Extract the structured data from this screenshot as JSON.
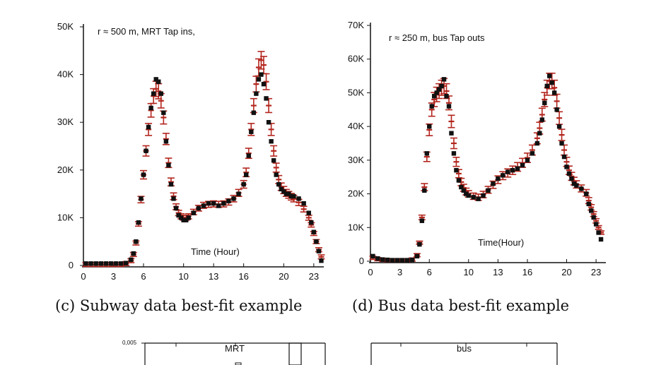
{
  "chart_data": [
    {
      "id": "c",
      "type": "scatter",
      "caption": "(c) Subway data best-fit example",
      "annotation": "r ≈ 500 m, MRT Tap ins,",
      "xlabel": "Time (Hour)",
      "ylabel": "",
      "xlim": [
        0,
        24
      ],
      "ylim": [
        0,
        50000
      ],
      "x_ticks": [
        0,
        3,
        6,
        10,
        13,
        16,
        20,
        23
      ],
      "y_ticks": [
        {
          "value": 0,
          "label": "0"
        },
        {
          "value": 10000,
          "label": "10K"
        },
        {
          "value": 20000,
          "label": "20K"
        },
        {
          "value": 30000,
          "label": "30K"
        },
        {
          "value": 40000,
          "label": "40K"
        },
        {
          "value": 50000,
          "label": "50K"
        }
      ],
      "colors": {
        "observed": "#111111",
        "fit": "#b3261e"
      },
      "x": [
        0.25,
        0.75,
        1.25,
        1.75,
        2.25,
        2.75,
        3.25,
        3.75,
        4.25,
        4.75,
        5.0,
        5.25,
        5.5,
        5.75,
        6.0,
        6.25,
        6.5,
        6.75,
        7.0,
        7.25,
        7.5,
        7.75,
        8.0,
        8.25,
        8.5,
        8.75,
        9.0,
        9.25,
        9.5,
        9.75,
        10.0,
        10.25,
        10.5,
        11.0,
        11.5,
        12.0,
        12.5,
        13.0,
        13.5,
        14.0,
        14.5,
        15.0,
        15.5,
        16.0,
        16.25,
        16.5,
        16.75,
        17.0,
        17.25,
        17.5,
        17.75,
        18.0,
        18.25,
        18.5,
        18.75,
        19.0,
        19.25,
        19.5,
        19.75,
        20.0,
        20.25,
        20.5,
        20.75,
        21.0,
        21.5,
        22.0,
        22.5,
        22.75,
        23.0,
        23.25,
        23.5,
        23.75
      ],
      "series": [
        {
          "role": "observed",
          "values": [
            400,
            400,
            400,
            400,
            400,
            400,
            400,
            400,
            500,
            1200,
            2500,
            5000,
            9000,
            14000,
            19000,
            24000,
            29000,
            33000,
            36000,
            39000,
            38500,
            36000,
            32000,
            26000,
            21000,
            17000,
            14000,
            12000,
            10500,
            10000,
            9500,
            9500,
            10000,
            11000,
            12000,
            12500,
            13000,
            13000,
            12500,
            13000,
            13500,
            14000,
            15000,
            17000,
            19000,
            23000,
            28000,
            32000,
            36000,
            39000,
            40000,
            38000,
            35000,
            30000,
            26000,
            22000,
            19000,
            17000,
            16000,
            15500,
            15000,
            15000,
            14500,
            14500,
            14000,
            13000,
            11000,
            9000,
            7000,
            5000,
            3000,
            1000
          ]
        },
        {
          "role": "fit",
          "values": [
            200,
            200,
            200,
            200,
            200,
            200,
            200,
            200,
            400,
            1000,
            2300,
            4700,
            8700,
            13800,
            19000,
            24000,
            28500,
            32500,
            35500,
            37000,
            36500,
            34500,
            31000,
            26500,
            21500,
            17500,
            14500,
            12300,
            11000,
            10300,
            10000,
            10000,
            10300,
            11200,
            12000,
            12600,
            12800,
            12900,
            12800,
            12900,
            13300,
            14000,
            15200,
            17000,
            19500,
            23500,
            28500,
            33500,
            38000,
            41500,
            43000,
            42000,
            38500,
            33500,
            28500,
            24000,
            20500,
            18000,
            16500,
            15800,
            15200,
            14800,
            14400,
            14000,
            13200,
            11800,
            10000,
            8500,
            6700,
            5000,
            3300,
            1800
          ]
        }
      ]
    },
    {
      "id": "d",
      "type": "scatter",
      "caption": "(d) Bus data best-fit example",
      "annotation": "r ≈ 250 m, bus Tap outs",
      "xlabel": "Time(Hour)",
      "ylabel": "",
      "xlim": [
        0,
        24
      ],
      "ylim": [
        0,
        70000
      ],
      "x_ticks": [
        0,
        3,
        6,
        10,
        13,
        16,
        20,
        23
      ],
      "y_ticks": [
        {
          "value": 0,
          "label": "0"
        },
        {
          "value": 10000,
          "label": "10K"
        },
        {
          "value": 20000,
          "label": "20K"
        },
        {
          "value": 30000,
          "label": "30K"
        },
        {
          "value": 40000,
          "label": "40K"
        },
        {
          "value": 50000,
          "label": "50K"
        },
        {
          "value": 60000,
          "label": "60K"
        },
        {
          "value": 70000,
          "label": "70K"
        }
      ],
      "colors": {
        "observed": "#111111",
        "fit": "#b3261e"
      },
      "x": [
        0.25,
        0.75,
        1.25,
        1.75,
        2.25,
        2.75,
        3.25,
        3.75,
        4.25,
        4.75,
        5.0,
        5.25,
        5.5,
        5.75,
        6.0,
        6.25,
        6.5,
        6.75,
        7.0,
        7.25,
        7.5,
        7.75,
        8.0,
        8.25,
        8.5,
        8.75,
        9.0,
        9.25,
        9.5,
        9.75,
        10.0,
        10.5,
        11.0,
        11.5,
        12.0,
        12.5,
        13.0,
        13.5,
        14.0,
        14.5,
        15.0,
        15.5,
        16.0,
        16.5,
        17.0,
        17.25,
        17.5,
        17.75,
        18.0,
        18.25,
        18.5,
        18.75,
        19.0,
        19.25,
        19.5,
        19.75,
        20.0,
        20.25,
        20.5,
        20.75,
        21.0,
        21.5,
        22.0,
        22.25,
        22.5,
        22.75,
        23.0,
        23.25,
        23.5
      ],
      "series": [
        {
          "role": "observed",
          "values": [
            1500,
            800,
            500,
            400,
            300,
            300,
            300,
            300,
            400,
            1500,
            5000,
            12000,
            21000,
            32000,
            40000,
            46000,
            49000,
            50000,
            51000,
            52000,
            54000,
            49000,
            46000,
            38000,
            32000,
            27000,
            24000,
            22000,
            21000,
            20000,
            19500,
            19000,
            18500,
            19500,
            21000,
            23000,
            24500,
            25500,
            26500,
            27000,
            27500,
            28500,
            30000,
            32000,
            35000,
            38000,
            42000,
            47000,
            52000,
            55000,
            53000,
            50000,
            45000,
            40000,
            35000,
            31000,
            28000,
            26000,
            24500,
            23000,
            22500,
            21500,
            20000,
            17000,
            15000,
            13000,
            11000,
            8500,
            6500
          ]
        },
        {
          "role": "fit",
          "values": [
            1000,
            600,
            400,
            300,
            300,
            300,
            300,
            300,
            500,
            1800,
            5500,
            13000,
            22000,
            31000,
            39000,
            45000,
            48000,
            49500,
            50500,
            51500,
            52000,
            50500,
            47000,
            41500,
            35000,
            29500,
            26000,
            23500,
            21800,
            20700,
            20000,
            19300,
            19000,
            19800,
            21200,
            22700,
            24200,
            25400,
            26200,
            27000,
            28000,
            29200,
            30700,
            33000,
            36500,
            39500,
            43500,
            48000,
            51500,
            53500,
            53500,
            51500,
            47500,
            42500,
            37500,
            33000,
            29500,
            27000,
            25200,
            23800,
            22800,
            21600,
            20300,
            18000,
            16000,
            14000,
            12000,
            10000,
            8500
          ]
        }
      ]
    },
    {
      "id": "e",
      "type": "bar",
      "title": "MRT",
      "y_ticks": [
        {
          "value": 0.005,
          "label": "0,005"
        }
      ],
      "partial": true
    },
    {
      "id": "f",
      "type": "bar",
      "title": "bus",
      "partial": true
    }
  ]
}
